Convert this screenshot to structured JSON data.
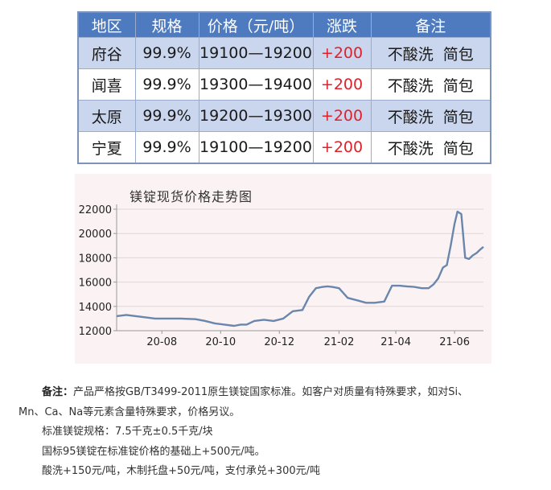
{
  "table": {
    "headers": [
      "地区",
      "规格",
      "价格（元/吨）",
      "涨跌",
      "备注"
    ],
    "rows": [
      [
        "府谷",
        "99.9%",
        "19100—19200",
        "+200",
        "不酸洗  简包"
      ],
      [
        "闻喜",
        "99.9%",
        "19300—19400",
        "+200",
        "不酸洗  简包"
      ],
      [
        "太原",
        "99.9%",
        "19200—19300",
        "+200",
        "不酸洗  简包"
      ],
      [
        "宁夏",
        "99.9%",
        "19100—19200",
        "+200",
        "不酸洗  简包"
      ]
    ],
    "colors": {
      "header_bg": "#4e7bc0",
      "odd_row_bg": "#c9d6ee",
      "change": "#e0202a"
    }
  },
  "chart_data": {
    "type": "line",
    "title": "镁锭现货价格走势图",
    "xlabel": "",
    "ylabel": "",
    "x_ticks": [
      "20-08",
      "20-10",
      "20-12",
      "21-02",
      "21-04",
      "21-06"
    ],
    "x_range": [
      "2020-06-15",
      "2021-07-01"
    ],
    "ylim": [
      12000,
      22000
    ],
    "y_ticks": [
      12000,
      14000,
      16000,
      18000,
      20000,
      22000
    ],
    "grid": {
      "horizontal": true,
      "vertical": false
    },
    "line_color": "#6a86ad",
    "series": [
      {
        "x": [
          "2020-06-15",
          "2020-06-25",
          "2020-07-05",
          "2020-07-15",
          "2020-07-25",
          "2020-08-05",
          "2020-08-20",
          "2020-09-05",
          "2020-09-15",
          "2020-09-25",
          "2020-10-05",
          "2020-10-15",
          "2020-10-22",
          "2020-10-28",
          "2020-11-05",
          "2020-11-15",
          "2020-11-25",
          "2020-12-05",
          "2020-12-15",
          "2020-12-25",
          "2021-01-01",
          "2021-01-08",
          "2021-01-15",
          "2021-01-20",
          "2021-01-25",
          "2021-02-01",
          "2021-02-10",
          "2021-02-20",
          "2021-03-01",
          "2021-03-10",
          "2021-03-20",
          "2021-03-28",
          "2021-04-05",
          "2021-04-12",
          "2021-04-20",
          "2021-04-28",
          "2021-05-05",
          "2021-05-10",
          "2021-05-15",
          "2021-05-20",
          "2021-05-24",
          "2021-05-28",
          "2021-06-01",
          "2021-06-04",
          "2021-06-08",
          "2021-06-12",
          "2021-06-16",
          "2021-06-20",
          "2021-06-24",
          "2021-06-28",
          "2021-07-01"
        ],
        "y": [
          13200,
          13300,
          13200,
          13100,
          13000,
          13000,
          13000,
          12950,
          12800,
          12600,
          12500,
          12400,
          12500,
          12500,
          12800,
          12900,
          12800,
          13000,
          13600,
          13700,
          14800,
          15500,
          15600,
          15650,
          15600,
          15500,
          14700,
          14500,
          14300,
          14300,
          14400,
          15700,
          15700,
          15650,
          15600,
          15500,
          15500,
          15800,
          16300,
          17200,
          17400,
          19000,
          20800,
          21800,
          21600,
          18000,
          17900,
          18200,
          18400,
          18700,
          18900
        ]
      }
    ]
  },
  "notes": {
    "label": "备注：",
    "line1": "产品严格按GB/T3499-2011原生镁锭国家标准。如客户对质量有特殊要求，如对Si、",
    "line2": "Mn、Ca、Na等元素含量特殊要求，价格另议。",
    "line3": "标准镁锭规格：7.5千克±0.5千克/块",
    "line4": "国标95镁锭在标准锭价格的基础上+500元/吨。",
    "line5": "酸洗+150元/吨，木制托盘+50元/吨，支付承兑+300元/吨"
  }
}
